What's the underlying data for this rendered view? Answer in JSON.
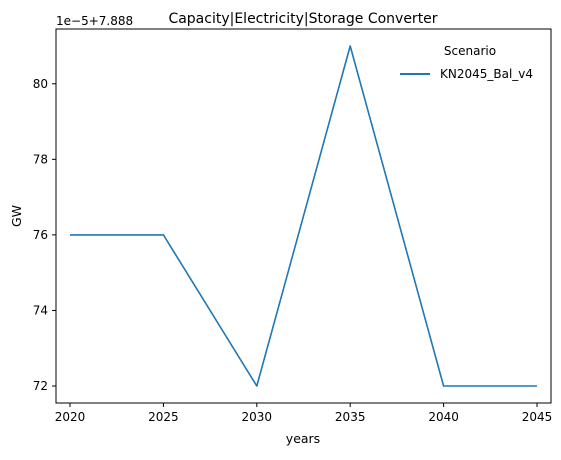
{
  "chart_data": {
    "type": "line",
    "title": "Capacity|Electricity|Storage Converter",
    "xlabel": "years",
    "ylabel": "GW",
    "offset_text": "1e−5+7.888",
    "x": [
      2020,
      2025,
      2030,
      2035,
      2040,
      2045
    ],
    "x_ticks": [
      "2020",
      "2025",
      "2030",
      "2035",
      "2040",
      "2045"
    ],
    "y_ticks": [
      "72",
      "74",
      "76",
      "78",
      "80"
    ],
    "y_tick_values": [
      72,
      74,
      76,
      78,
      80
    ],
    "xlim": [
      2019.25,
      2045.75
    ],
    "ylim": [
      71.55,
      81.45
    ],
    "series": [
      {
        "name": "KN2045_Bal_v4",
        "color": "#1f77b4",
        "values": [
          76,
          76,
          72,
          81,
          72,
          72
        ]
      }
    ],
    "legend": {
      "title": "Scenario",
      "position": "top-right"
    },
    "grid": false
  }
}
